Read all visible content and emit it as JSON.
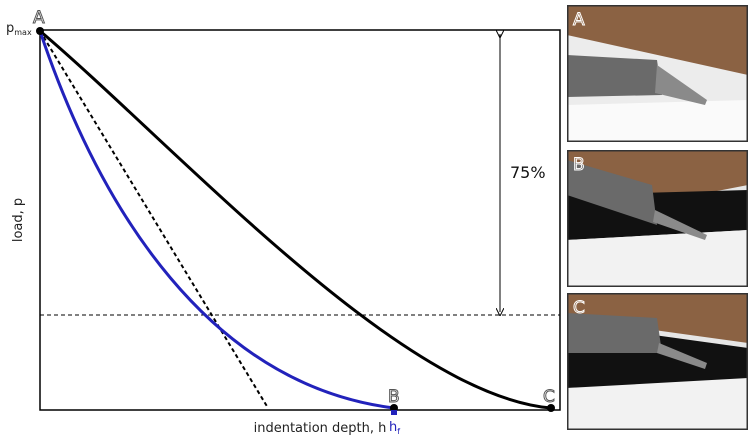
{
  "p_max": {
    "base": "p",
    "sub": "max"
  },
  "point_labels": {
    "a": "A",
    "b": "B",
    "c": "C"
  },
  "h_f": {
    "base": "h",
    "sub": "f"
  },
  "percent_label": "75%",
  "axes": {
    "y_label": "load, p",
    "x_label": "indentation depth, h"
  },
  "panels": [
    {
      "label": "A"
    },
    {
      "label": "B"
    },
    {
      "label": "C"
    }
  ]
}
